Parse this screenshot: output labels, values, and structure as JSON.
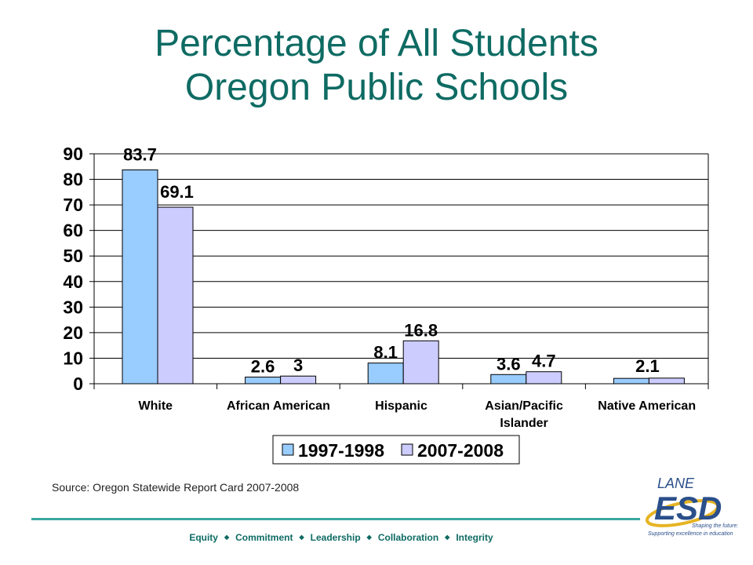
{
  "slide": {
    "title_line1": "Percentage of All Students",
    "title_line2": "Oregon Public Schools",
    "source": "Source: Oregon Statewide Report Card 2007-2008",
    "footer_values": [
      "Equity",
      "Commitment",
      "Leadership",
      "Collaboration",
      "Integrity"
    ],
    "logo": {
      "word_top": "LANE",
      "word_main": "ESD",
      "tagline1": "Shaping the future:",
      "tagline2": "Supporting excellence in education"
    }
  },
  "colors": {
    "title": "#0e6b63",
    "series_1": "#99ccff",
    "series_2": "#ccccff",
    "footer_rule": "#3aa8a0"
  },
  "chart_data": {
    "type": "bar",
    "categories": [
      "White",
      "African American",
      "Hispanic",
      "Asian/Pacific Islander",
      "Native American"
    ],
    "category_lines": [
      [
        "White"
      ],
      [
        "African American"
      ],
      [
        "Hispanic"
      ],
      [
        "Asian/Pacific",
        "Islander"
      ],
      [
        "Native American"
      ]
    ],
    "series": [
      {
        "name": "1997-1998",
        "values": [
          83.7,
          2.6,
          8.1,
          3.6,
          2.1
        ],
        "labels": [
          "83.7",
          "2.6",
          "8.1",
          "3.6",
          "2.1"
        ]
      },
      {
        "name": "2007-2008",
        "values": [
          69.1,
          3,
          16.8,
          4.7,
          2.2
        ],
        "labels": [
          "69.1",
          "3",
          "16.8",
          "4.7",
          ""
        ]
      }
    ],
    "ylim": [
      0,
      90
    ],
    "yticks": [
      0,
      10,
      20,
      30,
      40,
      50,
      60,
      70,
      80,
      90
    ],
    "grid": true,
    "legend_position": "bottom"
  }
}
